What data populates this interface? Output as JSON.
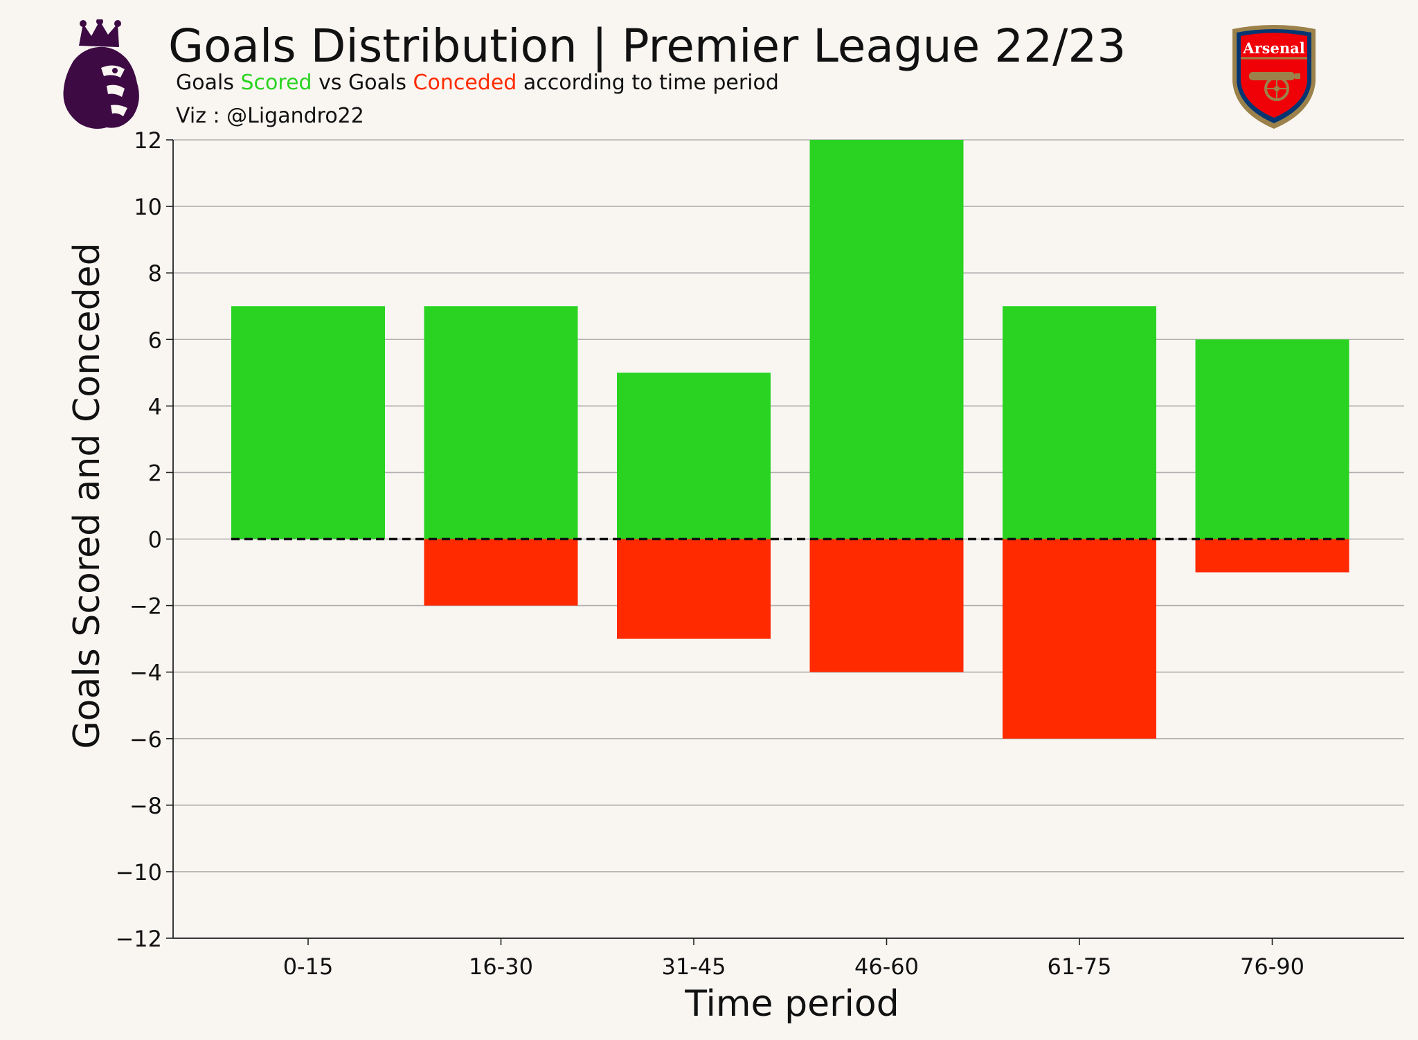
{
  "header": {
    "title": "Goals Distribution | Premier League 22/23",
    "subtitle_prefix": "Goals ",
    "subtitle_scored": "Scored",
    "subtitle_mid": " vs Goals ",
    "subtitle_conceded": "Conceded",
    "subtitle_suffix": " according to time period",
    "credit": "Viz : @Ligandro22"
  },
  "logos": {
    "left_icon": "premier-league-lion-icon",
    "right_icon": "arsenal-crest-icon",
    "right_text": "Arsenal"
  },
  "colors": {
    "background": "#f9f6f2",
    "scored": "#2ad321",
    "conceded": "#ff2a00",
    "premier_league_purple": "#3d0a43",
    "arsenal_red": "#ef0107",
    "arsenal_navy": "#063672",
    "arsenal_gold": "#9c824a"
  },
  "chart_data": {
    "type": "bar",
    "categories": [
      "0-15",
      "16-30",
      "31-45",
      "46-60",
      "61-75",
      "76-90"
    ],
    "series": [
      {
        "values": [
          7,
          7,
          5,
          12,
          7,
          6
        ]
      },
      {
        "values": [
          0,
          -2,
          -3,
          -4,
          -6,
          -1
        ]
      }
    ],
    "xlabel": "Time period",
    "ylabel": "Goals Scored and Conceded",
    "ylim": [
      -12,
      12
    ],
    "yticks": [
      "12",
      "10",
      "8",
      "6",
      "4",
      "2",
      "0",
      "−2",
      "−4",
      "−6",
      "−8",
      "−10",
      "−12"
    ],
    "ytick_values": [
      12,
      10,
      8,
      6,
      4,
      2,
      0,
      -2,
      -4,
      -6,
      -8,
      -10,
      -12
    ],
    "grid": "horizontal",
    "zero_line": "dashed"
  }
}
